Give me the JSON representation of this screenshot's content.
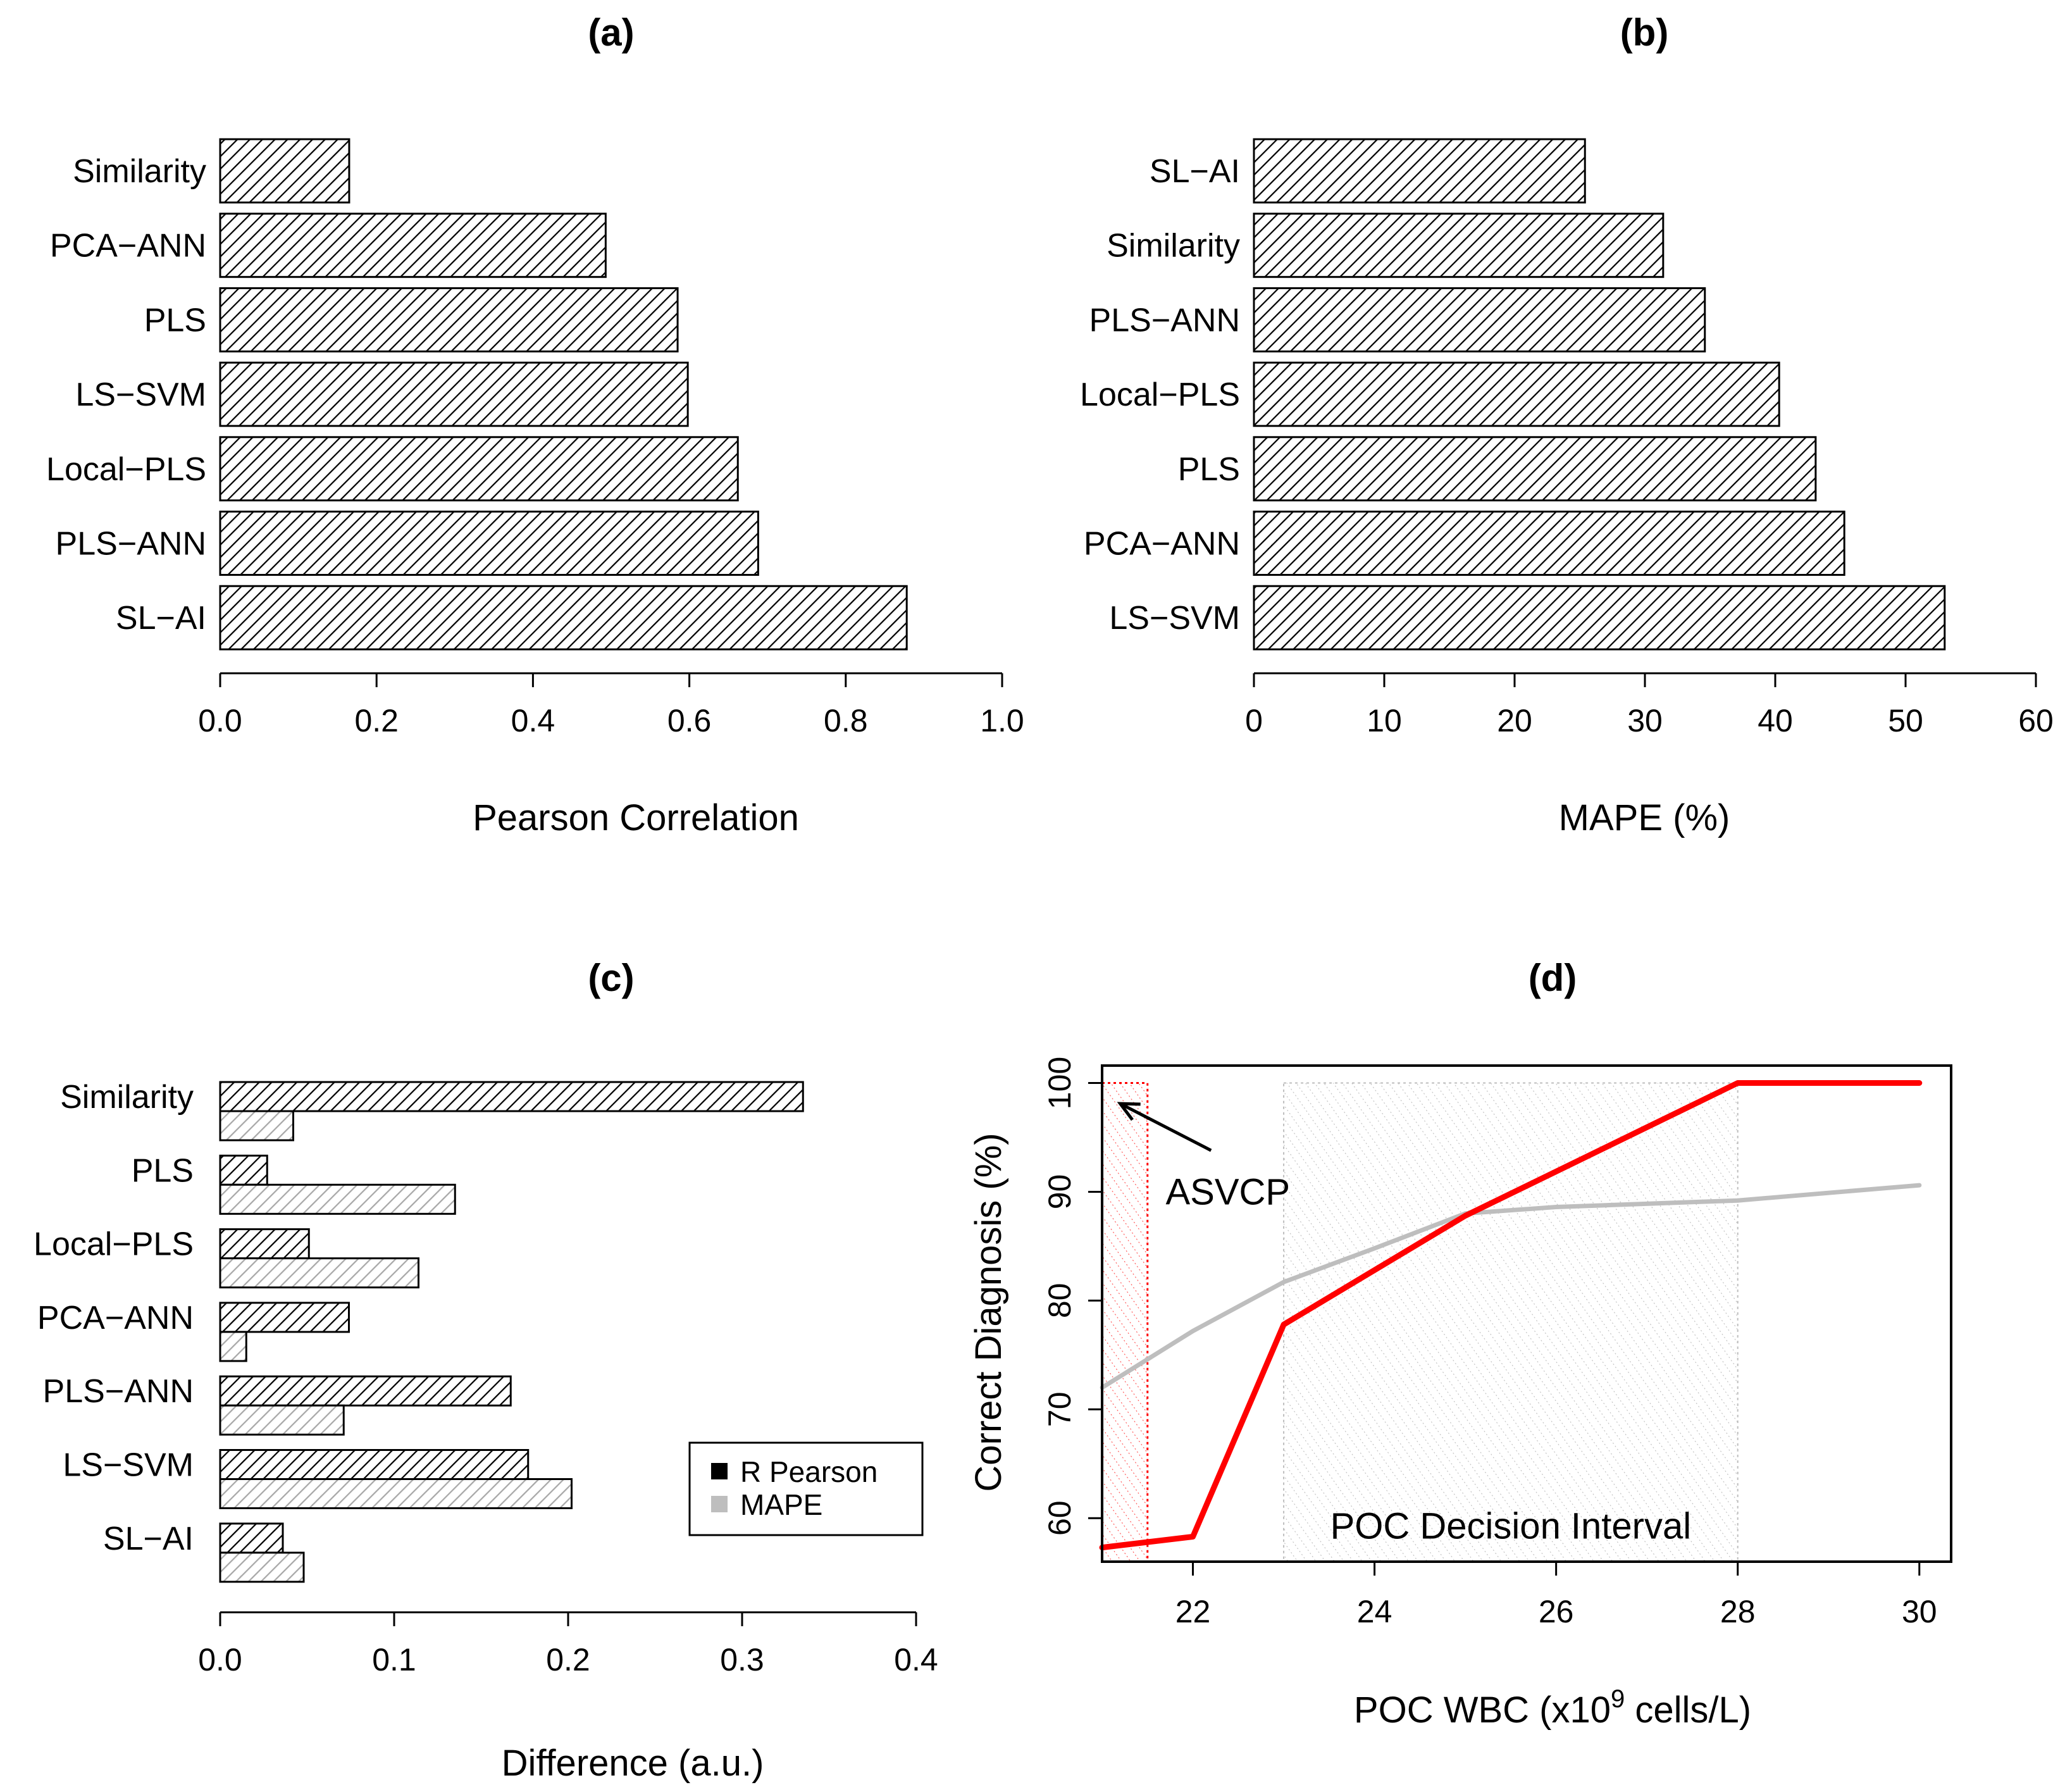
{
  "chart_data": [
    {
      "id": "a",
      "type": "bar",
      "orientation": "horizontal",
      "title": "(a)",
      "xlabel": "Pearson Correlation",
      "ylabel": "",
      "categories": [
        "Similarity",
        "PCA−ANN",
        "PLS",
        "LS−SVM",
        "Local−PLS",
        "PLS−ANN",
        "SL−AI"
      ],
      "values": [
        0.165,
        0.493,
        0.585,
        0.598,
        0.662,
        0.688,
        0.878
      ],
      "xlim": [
        0,
        1.0
      ],
      "xticks": [
        "0.0",
        "0.2",
        "0.4",
        "0.6",
        "0.8",
        "1.0"
      ],
      "fill": "hatched"
    },
    {
      "id": "b",
      "type": "bar",
      "orientation": "horizontal",
      "title": "(b)",
      "xlabel": "MAPE (%)",
      "ylabel": "",
      "categories": [
        "SL−AI",
        "Similarity",
        "PLS−ANN",
        "Local−PLS",
        "PLS",
        "PCA−ANN",
        "LS−SVM"
      ],
      "values": [
        25.4,
        31.4,
        34.6,
        40.3,
        43.1,
        45.3,
        53.0
      ],
      "xlim": [
        0,
        60
      ],
      "xticks": [
        "0",
        "10",
        "20",
        "30",
        "40",
        "50",
        "60"
      ],
      "fill": "hatched"
    },
    {
      "id": "c",
      "type": "bar",
      "orientation": "horizontal",
      "title": "(c)",
      "xlabel": "Difference (a.u.)",
      "ylabel": "",
      "categories": [
        "Similarity",
        "PLS",
        "Local−PLS",
        "PCA−ANN",
        "PLS−ANN",
        "LS−SVM",
        "SL−AI"
      ],
      "series": [
        {
          "name": "R Pearson",
          "color": "#000000",
          "values": [
            0.335,
            0.027,
            0.051,
            0.074,
            0.167,
            0.177,
            0.036
          ]
        },
        {
          "name": "MAPE",
          "color": "#bebebe",
          "values": [
            0.042,
            0.135,
            0.114,
            0.015,
            0.071,
            0.202,
            0.048
          ]
        }
      ],
      "xlim": [
        0,
        0.4
      ],
      "xticks": [
        "0.0",
        "0.1",
        "0.2",
        "0.3",
        "0.4"
      ],
      "legend": {
        "position": "right",
        "entries": [
          "R Pearson",
          "MAPE"
        ]
      }
    },
    {
      "id": "d",
      "type": "line",
      "title": "(d)",
      "xlabel_prefix": "POC WBC (x10",
      "xlabel_sup": "9",
      "xlabel_suffix": " cells/L)",
      "ylabel": "Correct Diagnosis (%)",
      "xlim": [
        21,
        30.35
      ],
      "ylim": [
        56,
        101.6
      ],
      "xticks": [
        "22",
        "24",
        "26",
        "28",
        "30"
      ],
      "yticks": [
        "60",
        "70",
        "80",
        "90",
        "100"
      ],
      "series": [
        {
          "name": "red",
          "color": "#ff0000",
          "x": [
            21,
            22,
            23,
            25,
            28,
            30
          ],
          "y": [
            57.3,
            58.3,
            77.8,
            87.8,
            100,
            100
          ]
        },
        {
          "name": "gray",
          "color": "#bebebe",
          "x": [
            21,
            22,
            23,
            24,
            25,
            26,
            28,
            30
          ],
          "y": [
            72.0,
            77.2,
            81.7,
            84.8,
            88.0,
            88.6,
            89.2,
            90.6
          ]
        }
      ],
      "regions": [
        {
          "name": "ASVCP",
          "x": [
            21,
            21.5
          ],
          "y": [
            56,
            100
          ],
          "color": "#ff0000"
        },
        {
          "name": "POC Decision Interval",
          "x": [
            23,
            28
          ],
          "y": [
            56,
            100
          ],
          "color": "#bebebe"
        }
      ],
      "annotations": [
        {
          "text": "ASVCP",
          "x": 21.7,
          "y": 90
        },
        {
          "text": "POC Decision Interval",
          "x": 25.5,
          "y": 59.3
        }
      ],
      "arrow": {
        "from": [
          22.2,
          93.8
        ],
        "to": [
          21.2,
          98.1
        ]
      }
    }
  ]
}
